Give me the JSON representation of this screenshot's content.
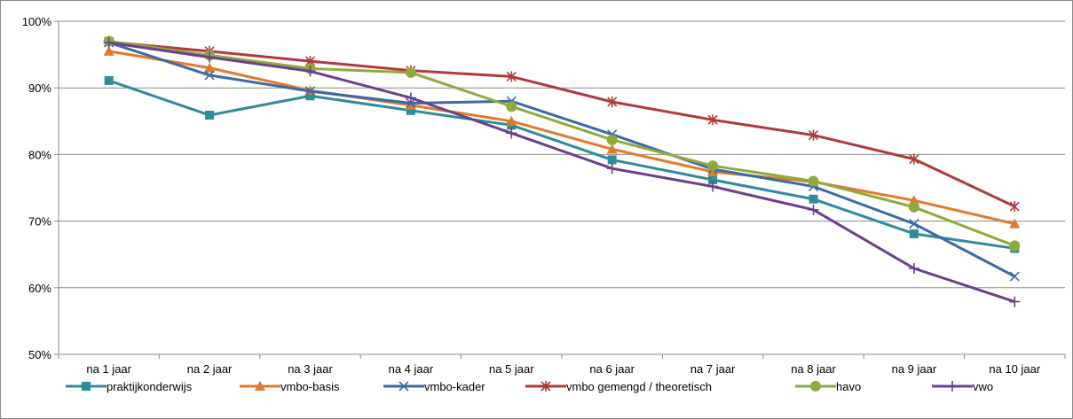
{
  "chart_data": {
    "type": "line",
    "title": "",
    "xlabel": "",
    "ylabel": "",
    "categories": [
      "na 1 jaar",
      "na 2 jaar",
      "na 3 jaar",
      "na 4 jaar",
      "na 5 jaar",
      "na 6 jaar",
      "na 7 jaar",
      "na 8 jaar",
      "na 9 jaar",
      "na 10 jaar"
    ],
    "ylim": [
      50,
      100
    ],
    "yticks": [
      50,
      60,
      70,
      80,
      90,
      100
    ],
    "ytick_labels": [
      "50%",
      "60%",
      "70%",
      "80%",
      "90%",
      "100%"
    ],
    "grid": true,
    "legend_position": "bottom",
    "series": [
      {
        "name": "praktijkonderwijs",
        "color": "#2e8b9a",
        "marker": "square",
        "values": [
          91.1,
          85.9,
          88.8,
          86.6,
          84.4,
          79.2,
          76.2,
          73.3,
          68.1,
          65.9
        ]
      },
      {
        "name": "vmbo-basis",
        "color": "#e07a2e",
        "marker": "triangle",
        "values": [
          95.5,
          93.0,
          89.6,
          87.4,
          85.0,
          80.8,
          77.4,
          75.9,
          73.1,
          69.6
        ]
      },
      {
        "name": "vmbo-kader",
        "color": "#3b6aa8",
        "marker": "x",
        "values": [
          96.8,
          91.9,
          89.5,
          87.7,
          88.0,
          83.0,
          77.8,
          75.2,
          69.6,
          61.7
        ]
      },
      {
        "name": "vmbo gemengd / theoretisch",
        "color": "#b03a3a",
        "marker": "star",
        "values": [
          96.9,
          95.5,
          94.0,
          92.6,
          91.7,
          87.9,
          85.2,
          82.9,
          79.3,
          72.2
        ]
      },
      {
        "name": "havo",
        "color": "#8faa3c",
        "marker": "circle",
        "values": [
          97.0,
          94.9,
          92.9,
          92.3,
          87.2,
          82.2,
          78.3,
          76.0,
          72.1,
          66.3
        ]
      },
      {
        "name": "vwo",
        "color": "#6b3f8e",
        "marker": "plus",
        "values": [
          96.8,
          94.6,
          92.5,
          88.5,
          83.2,
          77.9,
          75.2,
          71.7,
          62.9,
          57.9
        ]
      }
    ]
  }
}
